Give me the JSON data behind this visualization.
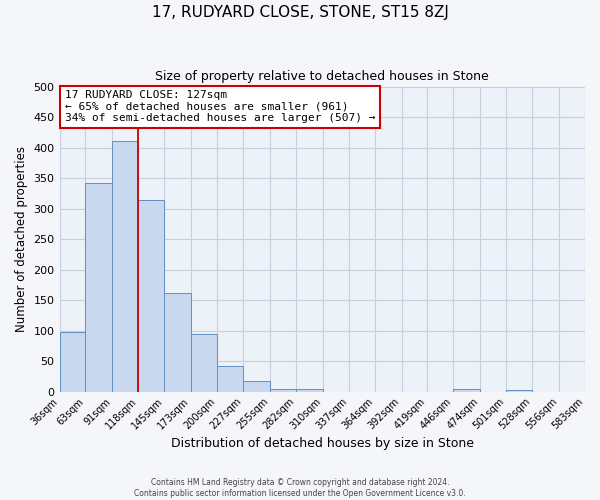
{
  "title": "17, RUDYARD CLOSE, STONE, ST15 8ZJ",
  "subtitle": "Size of property relative to detached houses in Stone",
  "xlabel": "Distribution of detached houses by size in Stone",
  "ylabel": "Number of detached properties",
  "bar_values": [
    97,
    342,
    411,
    314,
    161,
    95,
    42,
    18,
    5,
    4,
    0,
    0,
    0,
    0,
    0,
    5,
    0,
    2,
    0,
    0
  ],
  "bin_edges": [
    36,
    63,
    91,
    118,
    145,
    173,
    200,
    227,
    255,
    282,
    310,
    337,
    364,
    392,
    419,
    446,
    474,
    501,
    528,
    556,
    583
  ],
  "x_labels": [
    "36sqm",
    "63sqm",
    "91sqm",
    "118sqm",
    "145sqm",
    "173sqm",
    "200sqm",
    "227sqm",
    "255sqm",
    "282sqm",
    "310sqm",
    "337sqm",
    "364sqm",
    "392sqm",
    "419sqm",
    "446sqm",
    "474sqm",
    "501sqm",
    "528sqm",
    "556sqm",
    "583sqm"
  ],
  "ylim": [
    0,
    500
  ],
  "yticks": [
    0,
    50,
    100,
    150,
    200,
    250,
    300,
    350,
    400,
    450,
    500
  ],
  "bar_color": "#c8d8ee",
  "bar_edge_color": "#6090c0",
  "vline_x": 118,
  "vline_color": "#cc0000",
  "annotation_text1": "17 RUDYARD CLOSE: 127sqm",
  "annotation_text2": "← 65% of detached houses are smaller (961)",
  "annotation_text3": "34% of semi-detached houses are larger (507) →",
  "annotation_box_facecolor": "#ffffff",
  "annotation_box_edgecolor": "#cc0000",
  "grid_color": "#c8d0e0",
  "background_color": "#edf1f8",
  "fig_background": "#f5f6fa",
  "footer1": "Contains HM Land Registry data © Crown copyright and database right 2024.",
  "footer2": "Contains public sector information licensed under the Open Government Licence v3.0."
}
